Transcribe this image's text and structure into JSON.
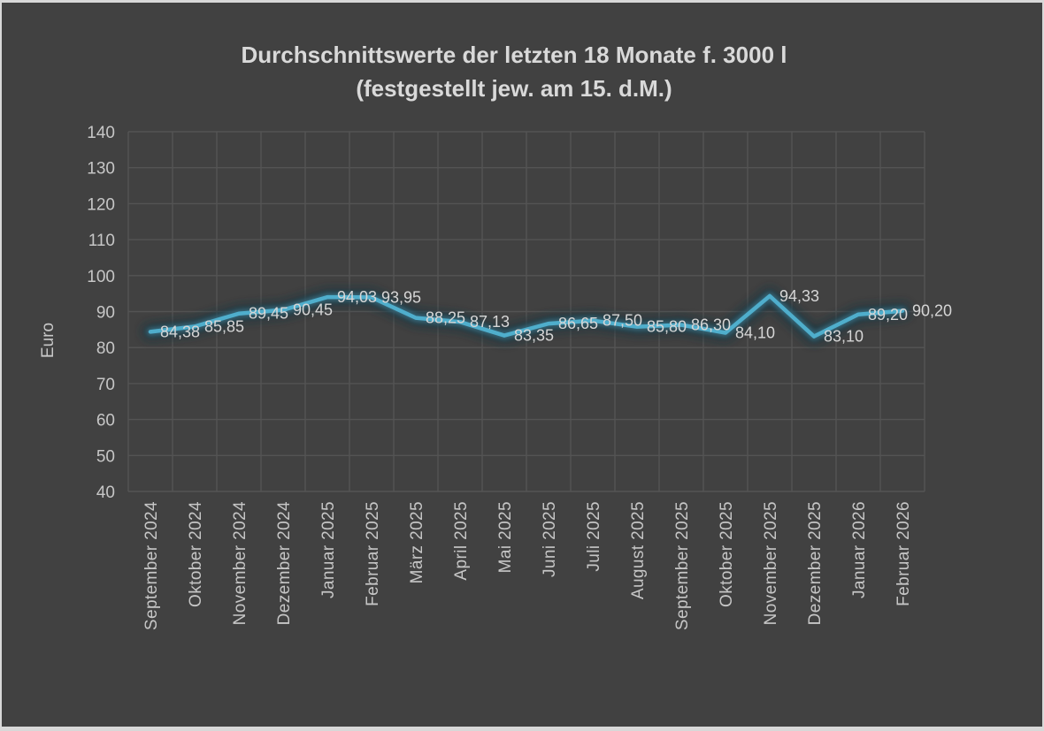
{
  "page": {
    "border_color": "#D8D8D8"
  },
  "chart": {
    "background": "#414141",
    "grid_color": "#545454",
    "tick_text_color": "#C6C6C6",
    "data_label_color": "#D6D6D6",
    "title_color": "#D9D9D9",
    "ylabel_color": "#C8C8C8"
  },
  "chart_data": {
    "type": "line",
    "title": "Durchschnittswerte  der letzten 18 Monate f. 3000 l",
    "subtitle": "(festgestellt jew. am 15. d.M.)",
    "ylabel": "Euro",
    "ylim": [
      40,
      140
    ],
    "ytick_step": 10,
    "grid": true,
    "legend": "none",
    "line_color": "#4FAECC",
    "line_glow_color": "#16333d",
    "categories": [
      "September 2024",
      "Oktober 2024",
      "November 2024",
      "Dezember 2024",
      "Januar 2025",
      "Februar 2025",
      "März 2025",
      "April 2025",
      "Mai 2025",
      "Juni 2025",
      "Juli 2025",
      "August 2025",
      "September 2025",
      "Oktober 2025",
      "November 2025",
      "Dezember 2025",
      "Januar 2026",
      "Februar 2026"
    ],
    "values": [
      84.38,
      85.85,
      89.45,
      90.45,
      94.03,
      93.95,
      88.25,
      87.13,
      83.35,
      86.65,
      87.5,
      85.8,
      86.3,
      84.1,
      94.33,
      83.1,
      89.2,
      90.2
    ],
    "value_labels": [
      "84,38",
      "85,85",
      "89,45",
      "90,45",
      "94,03",
      "93,95",
      "88,25",
      "87,13",
      "83,35",
      "86,65",
      "87,50",
      "85,80",
      "86,30",
      "84,10",
      "94,33",
      "83,10",
      "89,20",
      "90,20"
    ]
  }
}
